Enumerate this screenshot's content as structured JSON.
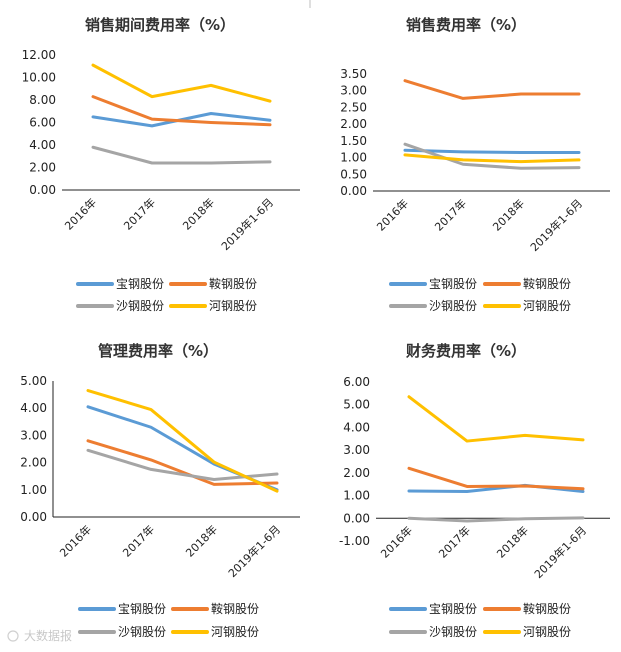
{
  "colors": {
    "宝钢股份": "#5B9BD5",
    "鞍钢股份": "#ED7D31",
    "沙钢股份": "#A5A5A5",
    "河钢股份": "#FFC000"
  },
  "watermark": "大数据报",
  "chart_data": [
    {
      "type": "line",
      "title": "销售期间费用率（%）",
      "categories": [
        "2016年",
        "2017年",
        "2018年",
        "2019年1-6月"
      ],
      "ylim": [
        0,
        12
      ],
      "yticks": [
        0,
        2,
        4,
        6,
        8,
        10,
        12
      ],
      "ytick_labels": [
        "0.00",
        "2.00",
        "4.00",
        "6.00",
        "8.00",
        "10.00",
        "12.00"
      ],
      "legend": [
        "宝钢股份",
        "鞍钢股份",
        "沙钢股份",
        "河钢股份"
      ],
      "series": [
        {
          "name": "宝钢股份",
          "values": [
            6.5,
            5.7,
            6.8,
            6.2
          ]
        },
        {
          "name": "鞍钢股份",
          "values": [
            8.3,
            6.3,
            6.0,
            5.8
          ]
        },
        {
          "name": "沙钢股份",
          "values": [
            3.8,
            2.4,
            2.4,
            2.5
          ]
        },
        {
          "name": "河钢股份",
          "values": [
            11.1,
            8.3,
            9.3,
            7.9
          ]
        }
      ]
    },
    {
      "type": "line",
      "title": "销售费用率（%）",
      "categories": [
        "2016年",
        "2017年",
        "2018年",
        "2019年1-6月"
      ],
      "ylim": [
        0,
        3.5
      ],
      "yticks": [
        0,
        0.5,
        1,
        1.5,
        2,
        2.5,
        3,
        3.5
      ],
      "ytick_labels": [
        "0.00",
        "0.50",
        "1.00",
        "1.50",
        "2.00",
        "2.50",
        "3.00",
        "3.50"
      ],
      "legend": [
        "宝钢股份",
        "鞍钢股份",
        "沙钢股份",
        "河钢股份"
      ],
      "series": [
        {
          "name": "宝钢股份",
          "values": [
            1.22,
            1.17,
            1.15,
            1.15
          ]
        },
        {
          "name": "鞍钢股份",
          "values": [
            3.3,
            2.77,
            2.9,
            2.9
          ]
        },
        {
          "name": "沙钢股份",
          "values": [
            1.4,
            0.8,
            0.68,
            0.7
          ]
        },
        {
          "name": "河钢股份",
          "values": [
            1.08,
            0.93,
            0.88,
            0.93
          ]
        }
      ]
    },
    {
      "type": "line",
      "title": "管理费用率（%）",
      "categories": [
        "2016年",
        "2017年",
        "2018年",
        "2019年1-6月"
      ],
      "ylim": [
        0,
        5
      ],
      "yticks": [
        0,
        1,
        2,
        3,
        4,
        5
      ],
      "ytick_labels": [
        "0.00",
        "1.00",
        "2.00",
        "3.00",
        "4.00",
        "5.00"
      ],
      "legend": [
        "宝钢股份",
        "鞍钢股份",
        "沙钢股份",
        "河钢股份"
      ],
      "series": [
        {
          "name": "宝钢股份",
          "values": [
            4.05,
            3.3,
            1.95,
            1.0
          ]
        },
        {
          "name": "鞍钢股份",
          "values": [
            2.8,
            2.1,
            1.2,
            1.25
          ]
        },
        {
          "name": "沙钢股份",
          "values": [
            2.45,
            1.75,
            1.38,
            1.58
          ]
        },
        {
          "name": "河钢股份",
          "values": [
            4.65,
            3.95,
            2.02,
            0.95
          ]
        }
      ]
    },
    {
      "type": "line",
      "title": "财务费用率（%）",
      "categories": [
        "2016年",
        "2017年",
        "2018年",
        "2019年1-6月"
      ],
      "ylim": [
        -1,
        6
      ],
      "yticks": [
        -1,
        0,
        1,
        2,
        3,
        4,
        5,
        6
      ],
      "ytick_labels": [
        "-1.00",
        "0.00",
        "1.00",
        "2.00",
        "3.00",
        "4.00",
        "5.00",
        "6.00"
      ],
      "legend": [
        "宝钢股份",
        "鞍钢股份",
        "沙钢股份",
        "河钢股份"
      ],
      "series": [
        {
          "name": "宝钢股份",
          "values": [
            1.2,
            1.18,
            1.45,
            1.18
          ]
        },
        {
          "name": "鞍钢股份",
          "values": [
            2.2,
            1.4,
            1.42,
            1.3
          ]
        },
        {
          "name": "沙钢股份",
          "values": [
            0.0,
            -0.12,
            -0.02,
            0.02
          ]
        },
        {
          "name": "河钢股份",
          "values": [
            5.35,
            3.4,
            3.65,
            3.45
          ]
        }
      ]
    }
  ]
}
